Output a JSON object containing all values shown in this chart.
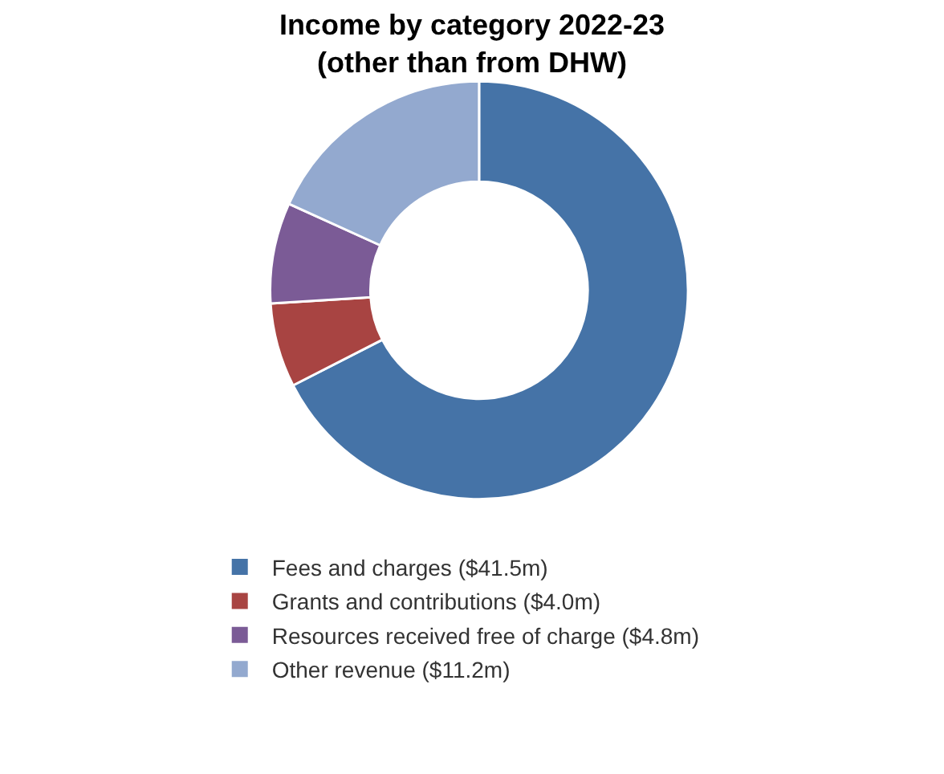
{
  "chart_data": {
    "type": "donut",
    "title": "Income by category 2022-23\n(other than from DHW)",
    "categories": [
      "Fees and charges ($41.5m)",
      "Grants and contributions ($4.0m)",
      "Resources received free of charge ($4.8m)",
      "Other revenue ($11.2m)"
    ],
    "values": [
      41.5,
      4.0,
      4.8,
      11.2
    ],
    "colors": [
      "#4573a7",
      "#a84442",
      "#7b5b96",
      "#93a9cf"
    ],
    "legend": "bottom"
  }
}
